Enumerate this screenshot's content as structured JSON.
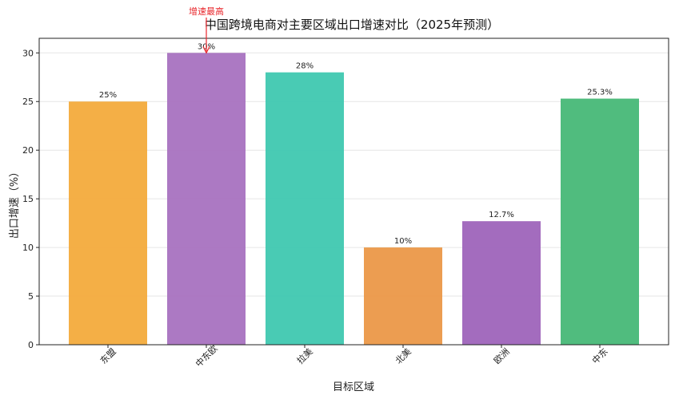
{
  "chart_data": {
    "type": "bar",
    "title": "中国跨境电商对主要区域出口增速对比（2025年预测）",
    "xlabel": "目标区域",
    "ylabel": "出口增速（%）",
    "categories": [
      "东盟",
      "中东欧",
      "拉美",
      "北美",
      "欧洲",
      "中东"
    ],
    "values": [
      25,
      30,
      28,
      10,
      12.7,
      25.3
    ],
    "value_labels": [
      "25%",
      "30%",
      "28%",
      "10%",
      "12.7%",
      "25.3%"
    ],
    "colors": [
      "#f3ab3c",
      "#a872c0",
      "#3fc8b0",
      "#eb9848",
      "#9e64ba",
      "#47b877"
    ],
    "ylim": [
      0,
      31.5
    ],
    "yticks": [
      0,
      5,
      10,
      15,
      20,
      25,
      30
    ],
    "grid": true,
    "annotation": {
      "text": "增速最高",
      "category": "中东欧",
      "color": "#e8262b"
    }
  }
}
